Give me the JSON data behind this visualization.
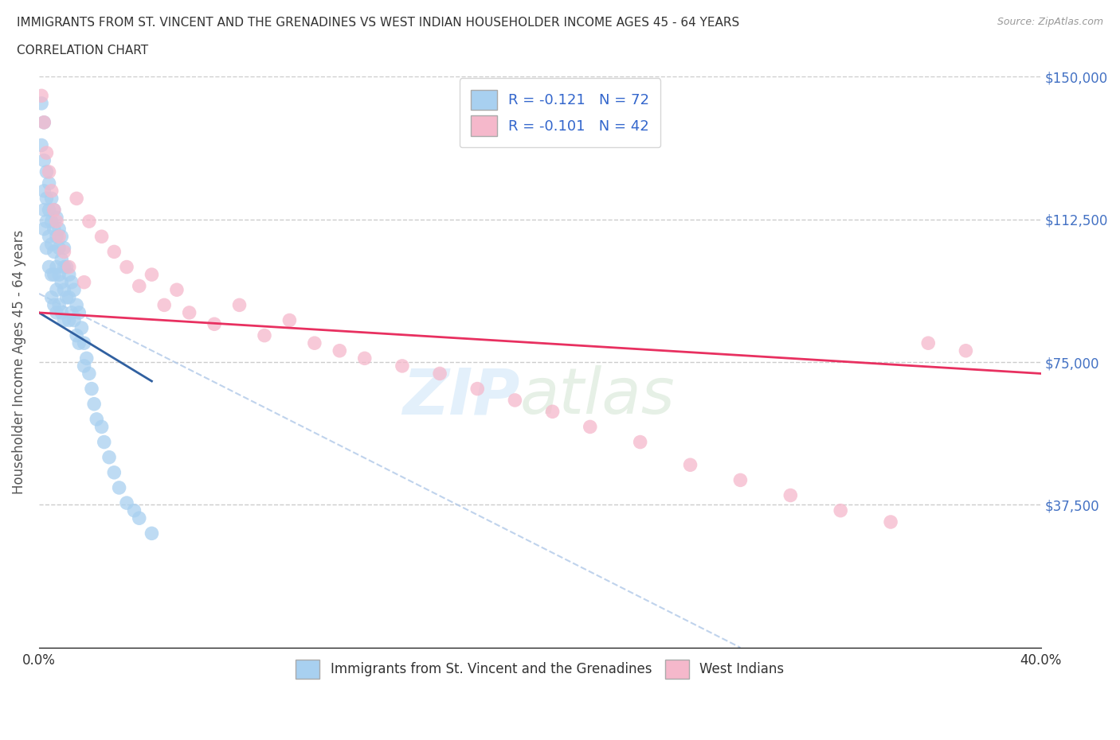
{
  "title_line1": "IMMIGRANTS FROM ST. VINCENT AND THE GRENADINES VS WEST INDIAN HOUSEHOLDER INCOME AGES 45 - 64 YEARS",
  "title_line2": "CORRELATION CHART",
  "source_text": "Source: ZipAtlas.com",
  "ylabel": "Householder Income Ages 45 - 64 years",
  "xlim": [
    0.0,
    0.4
  ],
  "ylim": [
    0,
    150000
  ],
  "legend_r1": "R = -0.121   N = 72",
  "legend_r2": "R = -0.101   N = 42",
  "blue_color": "#a8d0f0",
  "pink_color": "#f5b8cb",
  "blue_line_color": "#3060a0",
  "pink_line_color": "#e83060",
  "ref_line_color": "#b0c8e8",
  "blue_scatter_x": [
    0.001,
    0.001,
    0.002,
    0.002,
    0.002,
    0.002,
    0.002,
    0.003,
    0.003,
    0.003,
    0.003,
    0.004,
    0.004,
    0.004,
    0.004,
    0.005,
    0.005,
    0.005,
    0.005,
    0.005,
    0.006,
    0.006,
    0.006,
    0.006,
    0.006,
    0.007,
    0.007,
    0.007,
    0.007,
    0.007,
    0.008,
    0.008,
    0.008,
    0.008,
    0.009,
    0.009,
    0.009,
    0.009,
    0.01,
    0.01,
    0.01,
    0.01,
    0.011,
    0.011,
    0.012,
    0.012,
    0.012,
    0.013,
    0.013,
    0.014,
    0.014,
    0.015,
    0.015,
    0.016,
    0.016,
    0.017,
    0.018,
    0.018,
    0.019,
    0.02,
    0.021,
    0.022,
    0.023,
    0.025,
    0.026,
    0.028,
    0.03,
    0.032,
    0.035,
    0.038,
    0.04,
    0.045
  ],
  "blue_scatter_y": [
    143000,
    132000,
    128000,
    120000,
    115000,
    110000,
    138000,
    125000,
    118000,
    112000,
    105000,
    122000,
    115000,
    108000,
    100000,
    118000,
    112000,
    106000,
    98000,
    92000,
    115000,
    110000,
    104000,
    98000,
    90000,
    113000,
    108000,
    100000,
    94000,
    88000,
    110000,
    105000,
    98000,
    90000,
    108000,
    102000,
    96000,
    88000,
    105000,
    100000,
    94000,
    86000,
    100000,
    92000,
    98000,
    92000,
    86000,
    96000,
    88000,
    94000,
    86000,
    90000,
    82000,
    88000,
    80000,
    84000,
    80000,
    74000,
    76000,
    72000,
    68000,
    64000,
    60000,
    58000,
    54000,
    50000,
    46000,
    42000,
    38000,
    36000,
    34000,
    30000
  ],
  "pink_scatter_x": [
    0.001,
    0.002,
    0.003,
    0.004,
    0.005,
    0.006,
    0.007,
    0.008,
    0.01,
    0.012,
    0.015,
    0.018,
    0.02,
    0.025,
    0.03,
    0.035,
    0.04,
    0.045,
    0.05,
    0.055,
    0.06,
    0.07,
    0.08,
    0.09,
    0.1,
    0.11,
    0.12,
    0.13,
    0.145,
    0.16,
    0.175,
    0.19,
    0.205,
    0.22,
    0.24,
    0.26,
    0.28,
    0.3,
    0.32,
    0.34,
    0.355,
    0.37
  ],
  "pink_scatter_y": [
    145000,
    138000,
    130000,
    125000,
    120000,
    115000,
    112000,
    108000,
    104000,
    100000,
    118000,
    96000,
    112000,
    108000,
    104000,
    100000,
    95000,
    98000,
    90000,
    94000,
    88000,
    85000,
    90000,
    82000,
    86000,
    80000,
    78000,
    76000,
    74000,
    72000,
    68000,
    65000,
    62000,
    58000,
    54000,
    48000,
    44000,
    40000,
    36000,
    33000,
    80000,
    78000
  ],
  "ref_line_x": [
    0.0,
    0.28
  ],
  "ref_line_y": [
    93000,
    0
  ],
  "blue_trend_x": [
    0.0,
    0.045
  ],
  "blue_trend_y": [
    88000,
    70000
  ],
  "pink_trend_x": [
    0.0,
    0.4
  ],
  "pink_trend_y": [
    88000,
    72000
  ]
}
